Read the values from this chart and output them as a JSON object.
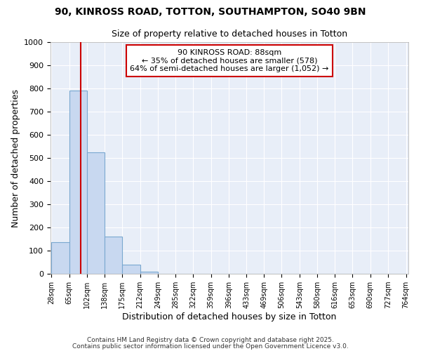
{
  "title1": "90, KINROSS ROAD, TOTTON, SOUTHAMPTON, SO40 9BN",
  "title2": "Size of property relative to detached houses in Totton",
  "xlabel": "Distribution of detached houses by size in Totton",
  "ylabel": "Number of detached properties",
  "bin_edges": [
    28,
    65,
    102,
    138,
    175,
    212,
    249,
    285,
    322,
    359,
    396,
    433,
    469,
    506,
    543,
    580,
    616,
    653,
    690,
    727,
    764
  ],
  "bar_heights": [
    135,
    790,
    525,
    160,
    38,
    10,
    0,
    0,
    0,
    0,
    0,
    0,
    0,
    0,
    0,
    0,
    0,
    0,
    0,
    0
  ],
  "bar_color": "#c8d8f0",
  "bar_edge_color": "#7aa8d0",
  "red_line_x": 88,
  "red_line_color": "#cc0000",
  "ylim": [
    0,
    1000
  ],
  "yticks": [
    0,
    100,
    200,
    300,
    400,
    500,
    600,
    700,
    800,
    900,
    1000
  ],
  "annotation_title": "90 KINROSS ROAD: 88sqm",
  "annotation_line2": "← 35% of detached houses are smaller (578)",
  "annotation_line3": "64% of semi-detached houses are larger (1,052) →",
  "annotation_box_color": "#cc0000",
  "footer1": "Contains HM Land Registry data © Crown copyright and database right 2025.",
  "footer2": "Contains public sector information licensed under the Open Government Licence v3.0.",
  "fig_bg_color": "#ffffff",
  "plot_bg_color": "#e8eef8",
  "grid_color": "#ffffff",
  "title_fontsize": 10,
  "subtitle_fontsize": 9
}
